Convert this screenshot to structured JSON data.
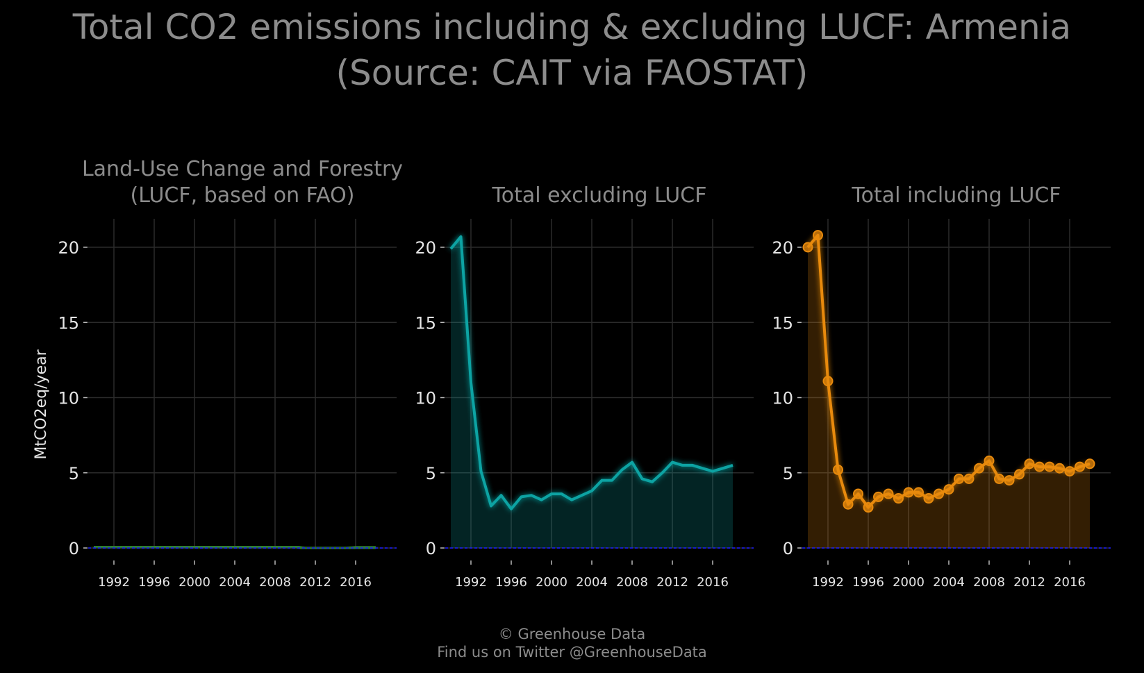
{
  "title_line1": "Total CO2 emissions including & excluding LUCF: Armenia",
  "title_line2": "(Source: CAIT via FAOSTAT)",
  "footer": {
    "line1": "© Greenhouse Data",
    "line2": "Find us on Twitter @GreenhouseData"
  },
  "colors": {
    "lucf": "#2e7d32",
    "excl": "#0fa3a3",
    "incl": "#e88a0c",
    "baseline": "#1a1aff"
  },
  "chart_data": [
    {
      "type": "area",
      "title_lines": [
        "Land-Use Change and Forestry",
        "(LUCF, based on FAO)"
      ],
      "ylabel": "MtCO2eq/year",
      "xlim": [
        1990,
        2018
      ],
      "ylim": [
        0,
        21
      ],
      "x_ticks": [
        1992,
        1996,
        2000,
        2004,
        2008,
        2012,
        2016
      ],
      "y_ticks": [
        0,
        5,
        10,
        15,
        20
      ],
      "grid": true,
      "markers": false,
      "series": [
        {
          "x": [
            1990,
            1991,
            1992,
            1993,
            1994,
            1995,
            1996,
            1997,
            1998,
            1999,
            2000,
            2001,
            2002,
            2003,
            2004,
            2005,
            2006,
            2007,
            2008,
            2009,
            2010,
            2011,
            2012,
            2013,
            2014,
            2015,
            2016,
            2017,
            2018
          ],
          "values": [
            0.1,
            0.1,
            0.1,
            0.1,
            0.1,
            0.1,
            0.1,
            0.1,
            0.1,
            0.1,
            0.1,
            0.1,
            0.1,
            0.1,
            0.1,
            0.1,
            0.1,
            0.1,
            0.1,
            0.1,
            0.1,
            -0.05,
            -0.05,
            -0.05,
            -0.05,
            -0.05,
            0.03,
            0.03,
            0.03
          ]
        }
      ]
    },
    {
      "type": "area",
      "title_lines": [
        "Total excluding LUCF"
      ],
      "xlim": [
        1990,
        2018
      ],
      "ylim": [
        0,
        21
      ],
      "x_ticks": [
        1992,
        1996,
        2000,
        2004,
        2008,
        2012,
        2016
      ],
      "y_ticks": [
        0,
        5,
        10,
        15,
        20
      ],
      "grid": true,
      "markers": false,
      "series": [
        {
          "x": [
            1990,
            1991,
            1992,
            1993,
            1994,
            1995,
            1996,
            1997,
            1998,
            1999,
            2000,
            2001,
            2002,
            2003,
            2004,
            2005,
            2006,
            2007,
            2008,
            2009,
            2010,
            2011,
            2012,
            2013,
            2014,
            2015,
            2016,
            2017,
            2018
          ],
          "values": [
            19.9,
            20.7,
            11.0,
            5.1,
            2.8,
            3.5,
            2.6,
            3.4,
            3.5,
            3.2,
            3.6,
            3.6,
            3.2,
            3.5,
            3.8,
            4.5,
            4.5,
            5.2,
            5.7,
            4.6,
            4.4,
            5.0,
            5.7,
            5.5,
            5.5,
            5.3,
            5.1,
            5.3,
            5.5
          ]
        }
      ]
    },
    {
      "type": "area",
      "title_lines": [
        "Total including LUCF"
      ],
      "xlim": [
        1990,
        2018
      ],
      "ylim": [
        0,
        21
      ],
      "x_ticks": [
        1992,
        1996,
        2000,
        2004,
        2008,
        2012,
        2016
      ],
      "y_ticks": [
        0,
        5,
        10,
        15,
        20
      ],
      "grid": true,
      "markers": true,
      "series": [
        {
          "x": [
            1990,
            1991,
            1992,
            1993,
            1994,
            1995,
            1996,
            1997,
            1998,
            1999,
            2000,
            2001,
            2002,
            2003,
            2004,
            2005,
            2006,
            2007,
            2008,
            2009,
            2010,
            2011,
            2012,
            2013,
            2014,
            2015,
            2016,
            2017,
            2018
          ],
          "values": [
            20.0,
            20.8,
            11.1,
            5.2,
            2.9,
            3.6,
            2.7,
            3.4,
            3.6,
            3.3,
            3.7,
            3.7,
            3.3,
            3.6,
            3.9,
            4.6,
            4.6,
            5.3,
            5.8,
            4.6,
            4.5,
            4.9,
            5.6,
            5.4,
            5.4,
            5.3,
            5.1,
            5.4,
            5.6
          ]
        }
      ]
    }
  ]
}
